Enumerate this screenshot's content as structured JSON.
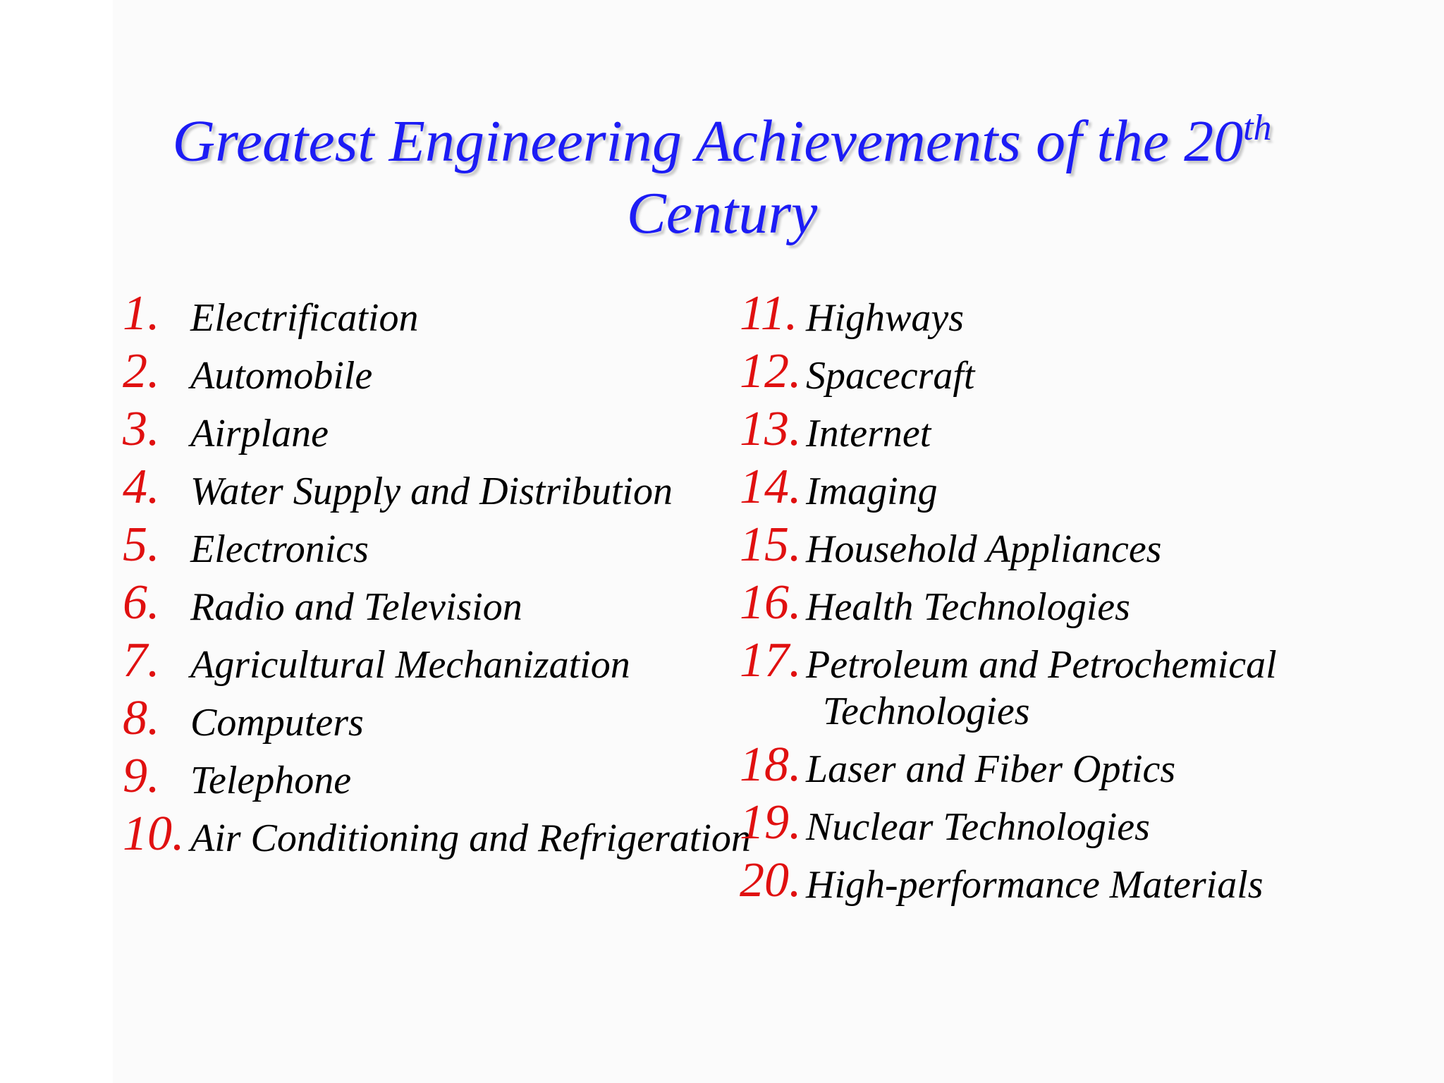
{
  "title": {
    "main": "Greatest Engineering Achievements of the 20",
    "superscript": "th",
    "line2": "Century"
  },
  "columns": [
    {
      "items": [
        {
          "number": "1.",
          "label": "Electrification"
        },
        {
          "number": "2.",
          "label": "Automobile"
        },
        {
          "number": "3.",
          "label": "Airplane"
        },
        {
          "number": "4.",
          "label": "Water Supply and Distribution"
        },
        {
          "number": "5.",
          "label": "Electronics"
        },
        {
          "number": "6.",
          "label": "Radio and Television"
        },
        {
          "number": "7.",
          "label": "Agricultural Mechanization"
        },
        {
          "number": "8.",
          "label": "Computers"
        },
        {
          "number": "9.",
          "label": "Telephone"
        },
        {
          "number": "10.",
          "label": "Air Conditioning and Refrigeration"
        }
      ]
    },
    {
      "items": [
        {
          "number": "11.",
          "label": "Highways"
        },
        {
          "number": "12.",
          "label": "Spacecraft"
        },
        {
          "number": "13.",
          "label": "Internet"
        },
        {
          "number": "14.",
          "label": "Imaging"
        },
        {
          "number": "15.",
          "label": "Household Appliances"
        },
        {
          "number": "16.",
          "label": "Health Technologies"
        },
        {
          "number": "17.",
          "label": "Petroleum and Petrochemical Technologies"
        },
        {
          "number": "18.",
          "label": "Laser and Fiber Optics"
        },
        {
          "number": "19.",
          "label": "Nuclear Technologies"
        },
        {
          "number": "20.",
          "label": "High-performance Materials"
        }
      ]
    }
  ]
}
